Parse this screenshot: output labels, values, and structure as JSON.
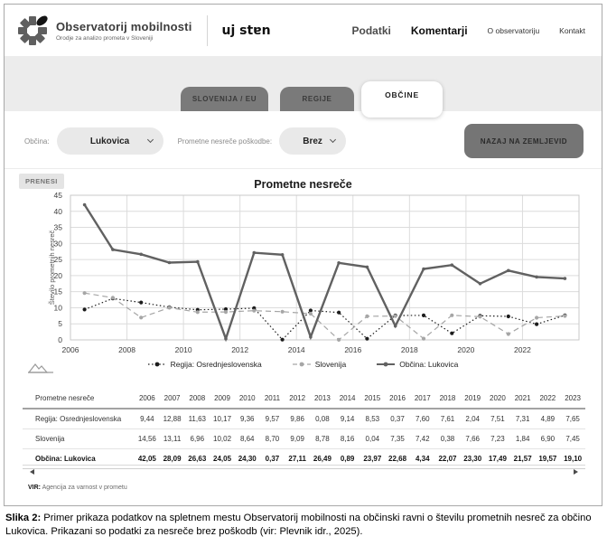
{
  "header": {
    "brand_title": "Observatorij mobilnosti",
    "brand_subtitle": "Orodje za analizo prometa v Sloveniji",
    "partner_logo": "uj stɐn",
    "nav": [
      {
        "label": "Podatki"
      },
      {
        "label": "Komentarji"
      },
      {
        "label": "O observatoriju"
      },
      {
        "label": "Kontakt"
      }
    ]
  },
  "tabs": [
    {
      "label": "SLOVENIJA / EU",
      "active": false
    },
    {
      "label": "REGIJE",
      "active": false
    },
    {
      "label": "OBČINE",
      "active": true
    }
  ],
  "filters": {
    "obcina_label": "Občina:",
    "obcina_value": "Lukovica",
    "poskodbe_label": "Prometne nesreče poškodbe:",
    "poskodbe_value": "Brez",
    "back_button": "NAZAJ NA ZEMLJEVID"
  },
  "chart": {
    "download_button": "PRENESI",
    "title": "Prometne nesreče"
  },
  "chart_data": {
    "type": "line",
    "title": "Prometne nesreče",
    "xlabel": "",
    "ylabel": "Število prometnih nesreč",
    "ylim": [
      0,
      45
    ],
    "ytick_step": 5,
    "grid": true,
    "legend_position": "bottom",
    "x": [
      2006,
      2007,
      2008,
      2009,
      2010,
      2011,
      2012,
      2013,
      2014,
      2015,
      2016,
      2017,
      2018,
      2019,
      2020,
      2021,
      2022,
      2023
    ],
    "xticks": [
      2006,
      2008,
      2010,
      2012,
      2014,
      2016,
      2018,
      2020,
      2022
    ],
    "series": [
      {
        "name": "Regija: Osrednjeslovenska",
        "style": "dotted",
        "color": "#1c1c1c",
        "values": [
          9.44,
          12.88,
          11.63,
          10.17,
          9.36,
          9.57,
          9.86,
          0.08,
          9.14,
          8.53,
          0.37,
          7.6,
          7.61,
          2.04,
          7.51,
          7.31,
          4.89,
          7.65
        ]
      },
      {
        "name": "Slovenija",
        "style": "dashed",
        "color": "#a6a6a6",
        "values": [
          14.56,
          13.11,
          6.96,
          10.02,
          8.64,
          8.7,
          9.09,
          8.78,
          8.16,
          0.04,
          7.35,
          7.42,
          0.38,
          7.66,
          7.23,
          1.84,
          6.9,
          7.45
        ]
      },
      {
        "name": "Občina: Lukovica",
        "style": "solid",
        "color": "#616161",
        "values": [
          42.05,
          28.09,
          26.63,
          24.05,
          24.3,
          0.37,
          27.11,
          26.49,
          0.89,
          23.97,
          22.68,
          4.34,
          22.07,
          23.3,
          17.49,
          21.57,
          19.57,
          19.1
        ]
      }
    ]
  },
  "table": {
    "header": [
      "Prometne nesreče",
      "2006",
      "2007",
      "2008",
      "2009",
      "2010",
      "2011",
      "2012",
      "2013",
      "2014",
      "2015",
      "2016",
      "2017",
      "2018",
      "2019",
      "2020",
      "2021",
      "2022",
      "2023"
    ],
    "rows": [
      {
        "label": "Regija: Osrednjeslovenska",
        "bold": false,
        "values": [
          "9,44",
          "12,88",
          "11,63",
          "10,17",
          "9,36",
          "9,57",
          "9,86",
          "0,08",
          "9,14",
          "8,53",
          "0,37",
          "7,60",
          "7,61",
          "2,04",
          "7,51",
          "7,31",
          "4,89",
          "7,65"
        ]
      },
      {
        "label": "Slovenija",
        "bold": false,
        "values": [
          "14,56",
          "13,11",
          "6,96",
          "10,02",
          "8,64",
          "8,70",
          "9,09",
          "8,78",
          "8,16",
          "0,04",
          "7,35",
          "7,42",
          "0,38",
          "7,66",
          "7,23",
          "1,84",
          "6,90",
          "7,45"
        ]
      },
      {
        "label": "Občina: Lukovica",
        "bold": true,
        "values": [
          "42,05",
          "28,09",
          "26,63",
          "24,05",
          "24,30",
          "0,37",
          "27,11",
          "26,49",
          "0,89",
          "23,97",
          "22,68",
          "4,34",
          "22,07",
          "23,30",
          "17,49",
          "21,57",
          "19,57",
          "19,10"
        ]
      }
    ]
  },
  "source": {
    "label": "VIR:",
    "text": "Agencija za varnost v prometu"
  },
  "caption": {
    "label": "Slika 2:",
    "text": "Primer prikaza podatkov na spletnem mestu Observatorij mobilnosti na občinski ravni o številu prometnih nesreč za občino Lukovica. Prikazani so podatki za nesreče brez poškodb (vir: Plevnik idr., 2025)."
  },
  "colors": {
    "accent_dark": "#757575",
    "band": "#ececec",
    "pill": "#e9e9e9",
    "grid": "#dcdcdc"
  }
}
